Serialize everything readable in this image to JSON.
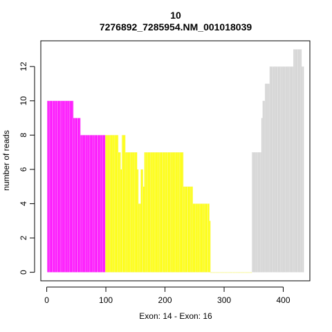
{
  "chart_data": {
    "type": "bar",
    "title": "10",
    "subtitle": "7276892_7285954.NM_001018039",
    "xlabel": "Exon: 14 - Exon: 16",
    "ylabel": "number of reads",
    "xlim": [
      -10,
      445
    ],
    "ylim": [
      -0.5,
      13.5
    ],
    "xticks": [
      0,
      100,
      200,
      300,
      400
    ],
    "yticks": [
      0,
      2,
      4,
      6,
      8,
      10,
      12
    ],
    "colors": {
      "exon14": "#ff00ff",
      "intron": "#ffff00",
      "exon16": "#d3d3d3",
      "bar_border": "#f2f2f2"
    },
    "series": [
      {
        "name": "",
        "color": "exon14",
        "x": [
          2,
          4,
          6,
          8,
          10,
          12,
          14,
          16,
          18,
          20,
          22,
          24,
          26,
          28,
          30,
          32,
          34,
          36,
          38,
          40,
          42,
          44,
          46,
          48,
          50,
          52,
          54,
          56,
          58,
          60,
          62,
          64,
          66,
          68,
          70,
          72,
          74,
          76,
          78,
          80,
          82,
          84,
          86,
          88,
          90,
          92,
          94,
          96,
          98
        ],
        "values": [
          10,
          10,
          10,
          10,
          10,
          10,
          10,
          10,
          10,
          10,
          10,
          10,
          10,
          10,
          10,
          10,
          10,
          10,
          10,
          10,
          10,
          10,
          9,
          9,
          9,
          9,
          9,
          9,
          8,
          8,
          8,
          8,
          8,
          8,
          8,
          8,
          8,
          8,
          8,
          8,
          8,
          8,
          8,
          8,
          8,
          8,
          8,
          8,
          8
        ]
      },
      {
        "name": "",
        "color": "intron",
        "x": [
          100,
          102,
          104,
          106,
          108,
          110,
          112,
          114,
          116,
          118,
          120,
          122,
          124,
          126,
          128,
          130,
          132,
          134,
          136,
          138,
          140,
          142,
          144,
          146,
          148,
          150,
          152,
          154,
          156,
          158,
          160,
          162,
          164,
          166,
          168,
          170,
          172,
          174,
          176,
          178,
          180,
          182,
          184,
          186,
          188,
          190,
          192,
          194,
          196,
          198,
          200,
          202,
          204,
          206,
          208,
          210,
          212,
          214,
          216,
          218,
          220,
          222,
          224,
          226,
          228,
          230,
          232,
          234,
          236,
          238,
          240,
          242,
          244,
          246,
          248,
          250,
          252,
          254,
          256,
          258,
          260,
          262,
          264,
          266,
          268,
          270,
          272,
          274,
          276,
          278,
          280,
          282,
          284,
          286,
          288,
          290,
          292,
          294,
          296,
          298,
          300,
          302,
          304,
          306,
          308,
          310,
          312,
          314,
          316,
          318,
          320,
          322,
          324,
          326,
          328,
          330,
          332,
          334,
          336,
          338,
          340,
          342,
          344,
          346
        ],
        "values": [
          8,
          8,
          8,
          8,
          8,
          8,
          8,
          8,
          8,
          8,
          8,
          7,
          7,
          6,
          8,
          8,
          8,
          7,
          7,
          7,
          7,
          7,
          7,
          7,
          7,
          7,
          7,
          6,
          4,
          4,
          6,
          6,
          5,
          7,
          7,
          7,
          7,
          7,
          7,
          7,
          7,
          7,
          7,
          7,
          7,
          7,
          7,
          7,
          7,
          7,
          7,
          7,
          7,
          7,
          7,
          7,
          7,
          7,
          7,
          7,
          7,
          7,
          7,
          7,
          7,
          7,
          5,
          5,
          5,
          5,
          5,
          5,
          5,
          5,
          4,
          4,
          4,
          4,
          4,
          4,
          4,
          4,
          4,
          4,
          4,
          4,
          4,
          4,
          3,
          0,
          0,
          0,
          0,
          0,
          0,
          0,
          0,
          0,
          0,
          0,
          0,
          0,
          0,
          0,
          0,
          0,
          0,
          0,
          0,
          0,
          0,
          0,
          0,
          0,
          0,
          0,
          0,
          0,
          0,
          0,
          0,
          0,
          0,
          0
        ]
      },
      {
        "name": "",
        "color": "exon16",
        "x": [
          348,
          350,
          352,
          354,
          356,
          358,
          360,
          362,
          364,
          366,
          368,
          370,
          372,
          374,
          376,
          378,
          380,
          382,
          384,
          386,
          388,
          390,
          392,
          394,
          396,
          398,
          400,
          402,
          404,
          406,
          408,
          410,
          412,
          414,
          416,
          418,
          420,
          422,
          424,
          426,
          428,
          430,
          432,
          434
        ],
        "values": [
          7,
          7,
          7,
          7,
          7,
          7,
          7,
          7,
          9,
          10,
          10,
          11,
          11,
          11,
          11,
          12,
          12,
          12,
          12,
          12,
          12,
          12,
          12,
          12,
          12,
          12,
          12,
          12,
          12,
          12,
          12,
          12,
          12,
          12,
          12,
          13,
          13,
          13,
          13,
          13,
          13,
          13,
          12,
          12
        ]
      }
    ]
  }
}
